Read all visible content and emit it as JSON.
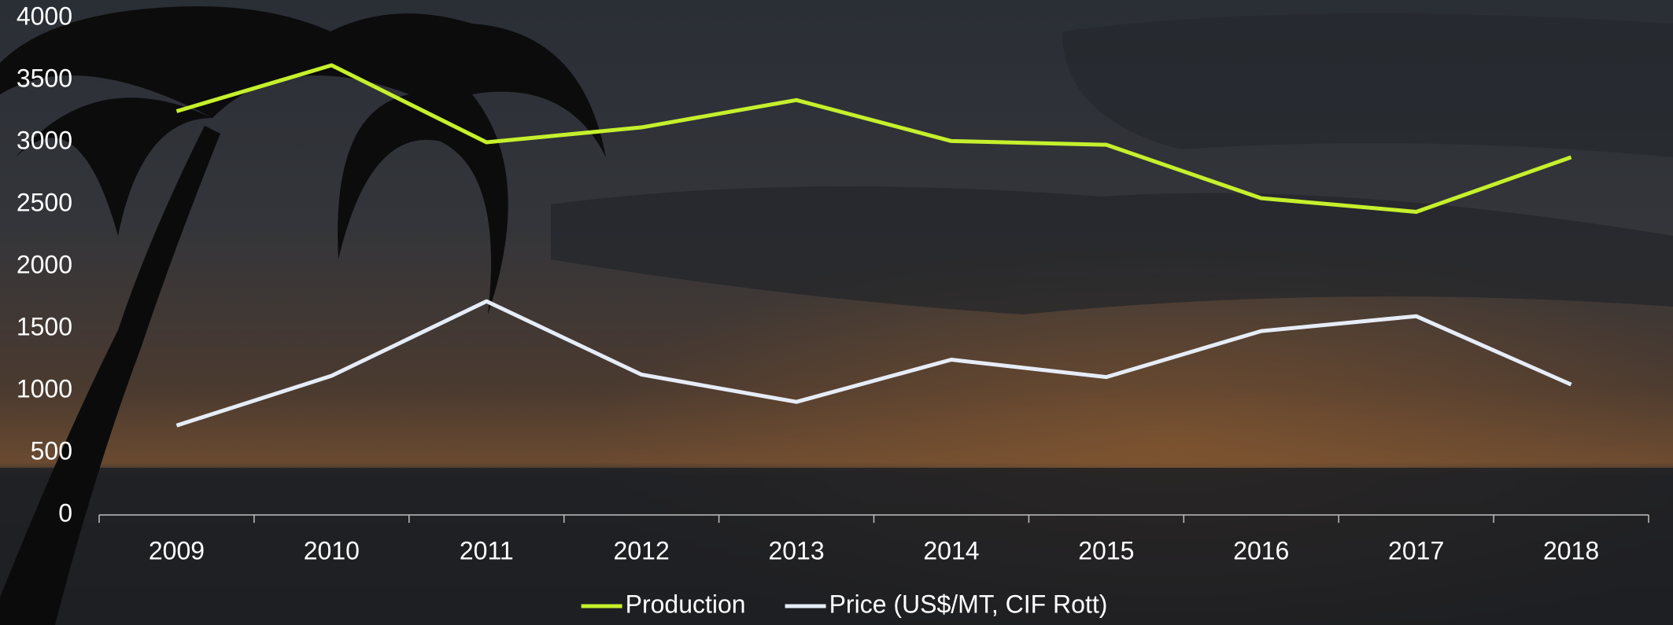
{
  "chart_data": {
    "type": "line",
    "categories": [
      "2009",
      "2010",
      "2011",
      "2012",
      "2013",
      "2014",
      "2015",
      "2016",
      "2017",
      "2018"
    ],
    "series": [
      {
        "name": "Production",
        "color": "#c6f02c",
        "values": [
          3250,
          3620,
          3000,
          3120,
          3340,
          3010,
          2980,
          2550,
          2440,
          2880
        ]
      },
      {
        "name": "Price (US$/MT, CIF Rott)",
        "color": "#e6edf8",
        "values": [
          720,
          1120,
          1720,
          1130,
          910,
          1250,
          1110,
          1480,
          1600,
          1050
        ]
      }
    ],
    "ylim": [
      0,
      4000
    ],
    "yticks": [
      0,
      500,
      1000,
      1500,
      2000,
      2500,
      3000,
      3500,
      4000
    ],
    "grid": false,
    "legend": "bottom"
  }
}
